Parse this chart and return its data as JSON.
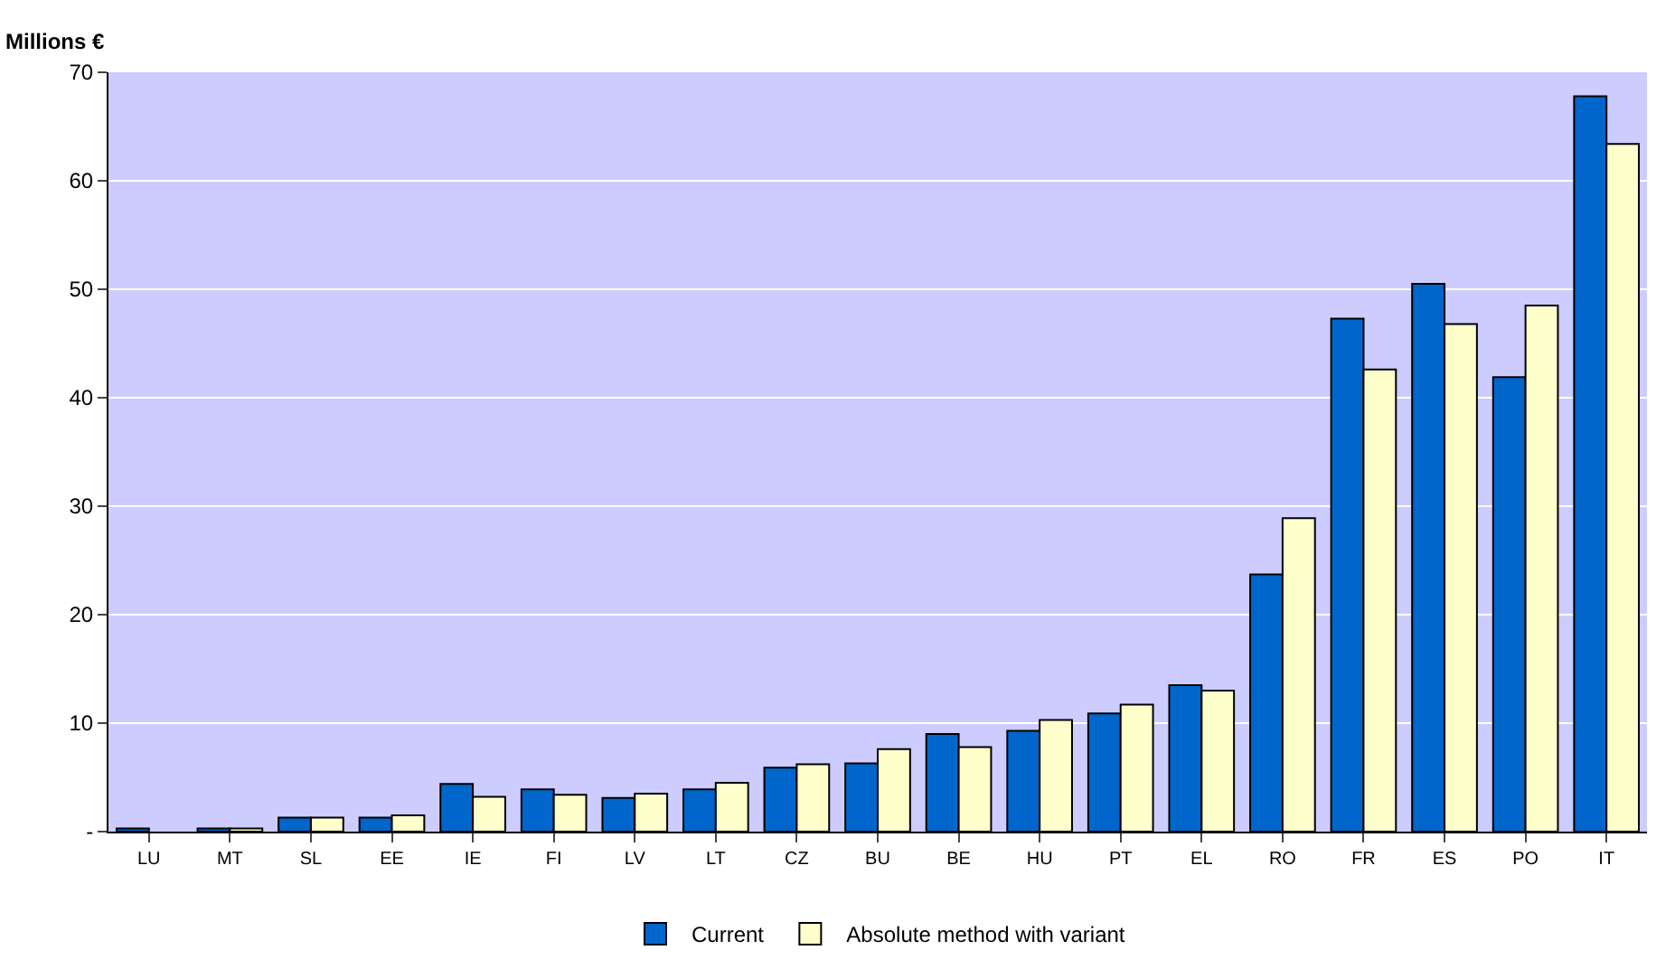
{
  "chart_data": {
    "type": "bar",
    "ylabel": "Millions €",
    "categories": [
      "LU",
      "MT",
      "SL",
      "EE",
      "IE",
      "FI",
      "LV",
      "LT",
      "CZ",
      "BU",
      "BE",
      "HU",
      "PT",
      "EL",
      "RO",
      "FR",
      "ES",
      "PO",
      "IT"
    ],
    "series": [
      {
        "name": "Current",
        "color": "#0066cc",
        "values": [
          0.3,
          0.3,
          1.3,
          1.3,
          4.4,
          3.9,
          3.1,
          3.9,
          5.9,
          6.3,
          9.0,
          9.3,
          10.9,
          13.5,
          23.7,
          47.3,
          50.5,
          41.9,
          67.8
        ]
      },
      {
        "name": "Absolute method with variant",
        "color": "#ffffcc",
        "values": [
          null,
          0.3,
          1.3,
          1.5,
          3.2,
          3.4,
          3.5,
          4.5,
          6.2,
          7.6,
          7.8,
          10.3,
          11.7,
          13.0,
          28.9,
          42.6,
          46.8,
          48.5,
          63.4
        ]
      }
    ],
    "ylim": [
      0,
      70
    ],
    "yticks": [
      {
        "value": 0,
        "label": "-"
      },
      10,
      20,
      30,
      40,
      50,
      60,
      70
    ],
    "grid": "y",
    "legend": "bottom"
  }
}
